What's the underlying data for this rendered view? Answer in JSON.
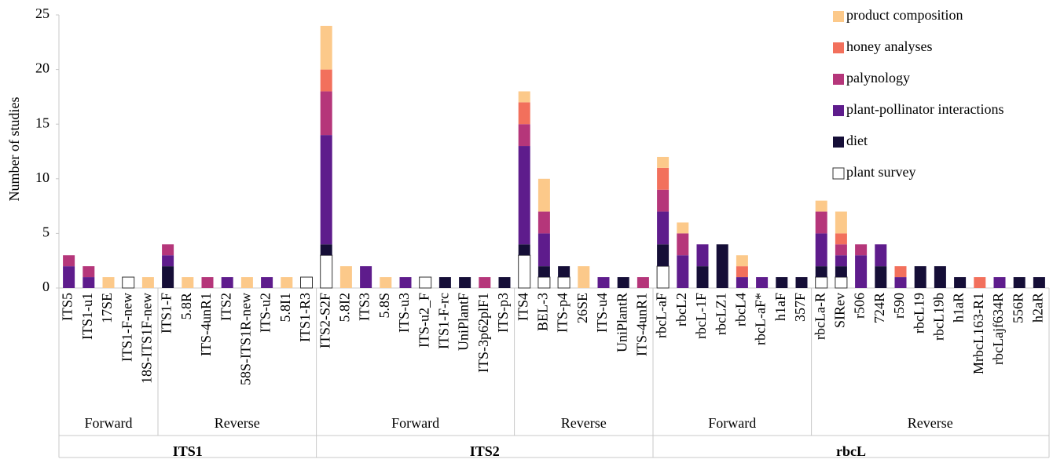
{
  "chart_data": {
    "type": "stacked_bar",
    "y_label": "Number of studies",
    "ylim": [
      0,
      25
    ],
    "yticks": [
      0,
      5,
      10,
      15,
      20,
      25
    ],
    "legend": "top-right",
    "groups": [
      {
        "label": "ITS1",
        "subgroups": [
          {
            "label": "Forward",
            "categories": [
              "ITS5",
              "ITS1-u1",
              "17SE",
              "ITS1-F-new",
              "18S-ITS1F-new"
            ]
          },
          {
            "label": "Reverse",
            "categories": [
              "ITS1-F",
              "5.8R",
              "ITS-4unR1",
              "ITS2",
              "58S-ITS1R-new",
              "ITS-u2",
              "5.8I1",
              "ITS1-R3"
            ]
          }
        ]
      },
      {
        "label": "ITS2",
        "subgroups": [
          {
            "label": "Forward",
            "categories": [
              "ITS2-S2F",
              "5.8I2",
              "ITS3",
              "5.8S",
              "ITS-u3",
              "ITS-u2_F",
              "ITS1-F-rc",
              "UniPlantF",
              "ITS-3p62plF1",
              "ITS-p3"
            ]
          },
          {
            "label": "Reverse",
            "categories": [
              "ITS4",
              "BEL-3",
              "ITS-p4",
              "26SE",
              "ITS-u4",
              "UniPlantR",
              "ITS-4unR1"
            ]
          }
        ]
      },
      {
        "label": "rbcL",
        "subgroups": [
          {
            "label": "Forward",
            "categories": [
              "rbcL-aF",
              "rbcL2",
              "rbcL-1F",
              "rbcLZ1",
              "rbcL4",
              "rbcL-aF*",
              "h1aF",
              "357F"
            ]
          },
          {
            "label": "Reverse",
            "categories": [
              "rbcLa-R",
              "SIRev",
              "r506",
              "724R",
              "r590",
              "rbcL19",
              "rbcL19b",
              "h1aR",
              "MrbcL163-R1",
              "rbcLajf634R",
              "556R",
              "h2aR"
            ]
          }
        ]
      }
    ],
    "series": [
      {
        "name": "plant survey",
        "color": "#ffffff",
        "values": [
          0,
          0,
          0,
          1,
          0,
          0,
          0,
          0,
          0,
          0,
          0,
          0,
          1,
          3,
          0,
          0,
          0,
          0,
          1,
          0,
          0,
          0,
          0,
          3,
          1,
          1,
          0,
          0,
          0,
          0,
          2,
          0,
          0,
          0,
          0,
          0,
          0,
          0,
          1,
          1,
          0,
          0,
          0,
          0,
          0,
          0,
          0,
          0,
          0,
          0
        ]
      },
      {
        "name": "diet",
        "color": "#150e37",
        "values": [
          0,
          0,
          0,
          0,
          0,
          2,
          0,
          0,
          0,
          0,
          0,
          0,
          0,
          1,
          0,
          0,
          0,
          0,
          0,
          1,
          1,
          0,
          1,
          1,
          1,
          1,
          0,
          0,
          1,
          0,
          2,
          0,
          2,
          4,
          0,
          0,
          1,
          1,
          1,
          1,
          0,
          2,
          0,
          2,
          2,
          1,
          0,
          0,
          1,
          1
        ]
      },
      {
        "name": "plant-pollinator interactions",
        "color": "#5e1c8c",
        "values": [
          2,
          1,
          0,
          0,
          0,
          1,
          0,
          0,
          1,
          0,
          1,
          0,
          0,
          10,
          0,
          2,
          0,
          1,
          0,
          0,
          0,
          0,
          0,
          9,
          3,
          0,
          0,
          1,
          0,
          0,
          3,
          3,
          2,
          0,
          1,
          1,
          0,
          0,
          3,
          1,
          3,
          2,
          1,
          0,
          0,
          0,
          0,
          1,
          0,
          0
        ]
      },
      {
        "name": "palynology",
        "color": "#b5367a",
        "values": [
          1,
          1,
          0,
          0,
          0,
          1,
          0,
          1,
          0,
          0,
          0,
          0,
          0,
          4,
          0,
          0,
          0,
          0,
          0,
          0,
          0,
          1,
          0,
          2,
          2,
          0,
          0,
          0,
          0,
          1,
          2,
          2,
          0,
          0,
          0,
          0,
          0,
          0,
          2,
          1,
          1,
          0,
          0,
          0,
          0,
          0,
          0,
          0,
          0,
          0
        ]
      },
      {
        "name": "honey analyses",
        "color": "#f2705c",
        "values": [
          0,
          0,
          0,
          0,
          0,
          0,
          0,
          0,
          0,
          0,
          0,
          0,
          0,
          2,
          0,
          0,
          0,
          0,
          0,
          0,
          0,
          0,
          0,
          2,
          0,
          0,
          0,
          0,
          0,
          0,
          2,
          0,
          0,
          0,
          1,
          0,
          0,
          0,
          0,
          1,
          0,
          0,
          1,
          0,
          0,
          0,
          1,
          0,
          0,
          0
        ]
      },
      {
        "name": "product composition",
        "color": "#fcc98a",
        "values": [
          0,
          0,
          1,
          0,
          1,
          0,
          1,
          0,
          0,
          1,
          0,
          1,
          0,
          4,
          2,
          0,
          1,
          0,
          0,
          0,
          0,
          0,
          0,
          1,
          3,
          0,
          2,
          0,
          0,
          0,
          1,
          1,
          0,
          0,
          1,
          0,
          0,
          0,
          1,
          2,
          0,
          0,
          0,
          0,
          0,
          0,
          0,
          0,
          0,
          0
        ]
      }
    ]
  }
}
